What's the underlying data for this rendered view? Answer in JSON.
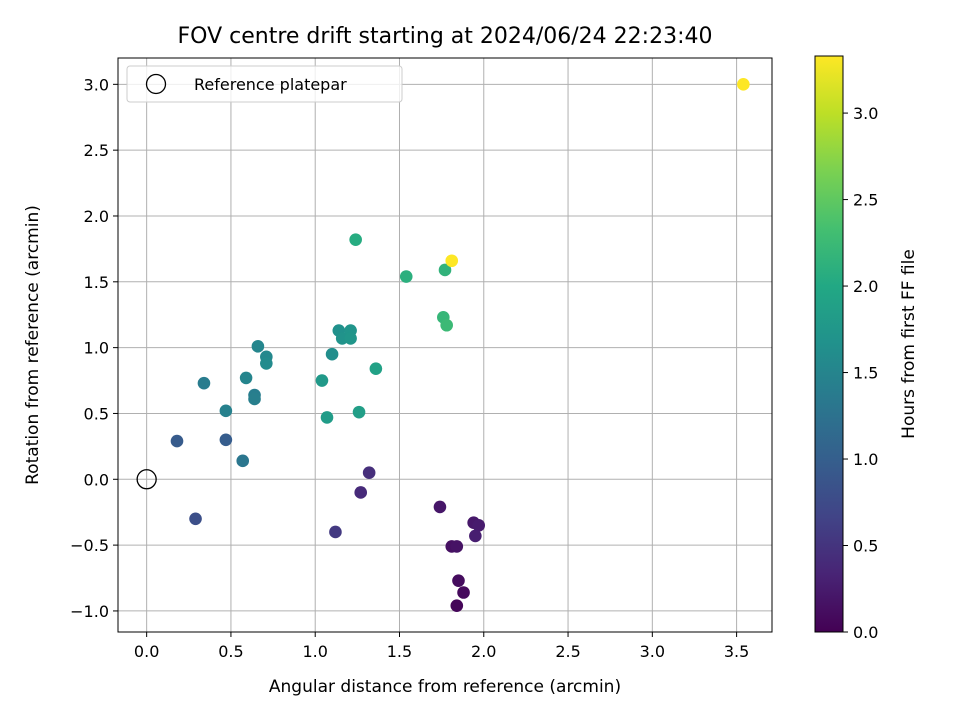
{
  "chart_data": {
    "type": "scatter",
    "title": "FOV centre drift starting at 2024/06/24 22:23:40",
    "xlabel": "Angular distance from reference (arcmin)",
    "ylabel": "Rotation from reference (arcmin)",
    "xlim": [
      -0.17,
      3.71
    ],
    "ylim": [
      -1.16,
      3.2
    ],
    "xticks": [
      0.0,
      0.5,
      1.0,
      1.5,
      2.0,
      2.5,
      3.0,
      3.5
    ],
    "xtick_labels": [
      "0.0",
      "0.5",
      "1.0",
      "1.5",
      "2.0",
      "2.5",
      "3.0",
      "3.5"
    ],
    "yticks": [
      -1.0,
      -0.5,
      0.0,
      0.5,
      1.0,
      1.5,
      2.0,
      2.5,
      3.0
    ],
    "ytick_labels": [
      "−1.0",
      "−0.5",
      "0.0",
      "0.5",
      "1.0",
      "1.5",
      "2.0",
      "2.5",
      "3.0"
    ],
    "grid": true,
    "legend": {
      "position": "top-left",
      "entries": [
        "Reference platepar"
      ]
    },
    "reference_point": {
      "x": 0.0,
      "y": 0.0
    },
    "colorbar": {
      "label": "Hours from first FF file",
      "range": [
        0.0,
        3.33
      ],
      "ticks": [
        0.0,
        0.5,
        1.0,
        1.5,
        2.0,
        2.5,
        3.0
      ],
      "tick_labels": [
        "0.0",
        "0.5",
        "1.0",
        "1.5",
        "2.0",
        "2.5",
        "3.0"
      ],
      "colormap": "viridis"
    },
    "points": [
      {
        "x": 1.84,
        "y": -0.96,
        "c": 0.05
      },
      {
        "x": 1.88,
        "y": -0.86,
        "c": 0.08
      },
      {
        "x": 1.85,
        "y": -0.77,
        "c": 0.1
      },
      {
        "x": 1.81,
        "y": -0.51,
        "c": 0.14
      },
      {
        "x": 1.84,
        "y": -0.51,
        "c": 0.17
      },
      {
        "x": 1.74,
        "y": -0.21,
        "c": 0.2
      },
      {
        "x": 1.94,
        "y": -0.33,
        "c": 0.22
      },
      {
        "x": 1.97,
        "y": -0.35,
        "c": 0.25
      },
      {
        "x": 1.95,
        "y": -0.43,
        "c": 0.28
      },
      {
        "x": 1.27,
        "y": -0.1,
        "c": 0.4
      },
      {
        "x": 1.32,
        "y": 0.05,
        "c": 0.45
      },
      {
        "x": 1.12,
        "y": -0.4,
        "c": 0.55
      },
      {
        "x": 0.29,
        "y": -0.3,
        "c": 0.8
      },
      {
        "x": 0.18,
        "y": 0.29,
        "c": 0.95
      },
      {
        "x": 0.47,
        "y": 0.3,
        "c": 0.98
      },
      {
        "x": 0.57,
        "y": 0.14,
        "c": 1.3
      },
      {
        "x": 0.34,
        "y": 0.73,
        "c": 1.38
      },
      {
        "x": 0.47,
        "y": 0.52,
        "c": 1.45
      },
      {
        "x": 0.64,
        "y": 0.64,
        "c": 1.4
      },
      {
        "x": 0.64,
        "y": 0.61,
        "c": 1.42
      },
      {
        "x": 0.59,
        "y": 0.77,
        "c": 1.5
      },
      {
        "x": 0.66,
        "y": 1.01,
        "c": 1.52
      },
      {
        "x": 0.71,
        "y": 0.93,
        "c": 1.55
      },
      {
        "x": 0.71,
        "y": 0.88,
        "c": 1.58
      },
      {
        "x": 1.1,
        "y": 0.95,
        "c": 1.62
      },
      {
        "x": 1.14,
        "y": 1.13,
        "c": 1.66
      },
      {
        "x": 1.16,
        "y": 1.07,
        "c": 1.7
      },
      {
        "x": 1.21,
        "y": 1.13,
        "c": 1.72
      },
      {
        "x": 1.21,
        "y": 1.07,
        "c": 1.74
      },
      {
        "x": 1.04,
        "y": 0.75,
        "c": 1.78
      },
      {
        "x": 1.07,
        "y": 0.47,
        "c": 1.82
      },
      {
        "x": 1.26,
        "y": 0.51,
        "c": 1.86
      },
      {
        "x": 1.36,
        "y": 0.84,
        "c": 1.9
      },
      {
        "x": 1.24,
        "y": 1.82,
        "c": 2.05
      },
      {
        "x": 1.54,
        "y": 1.54,
        "c": 2.1
      },
      {
        "x": 1.77,
        "y": 1.59,
        "c": 2.15
      },
      {
        "x": 1.76,
        "y": 1.23,
        "c": 2.2
      },
      {
        "x": 1.78,
        "y": 1.17,
        "c": 2.25
      },
      {
        "x": 1.81,
        "y": 1.66,
        "c": 3.33
      },
      {
        "x": 3.54,
        "y": 3.0,
        "c": 3.33
      }
    ]
  }
}
